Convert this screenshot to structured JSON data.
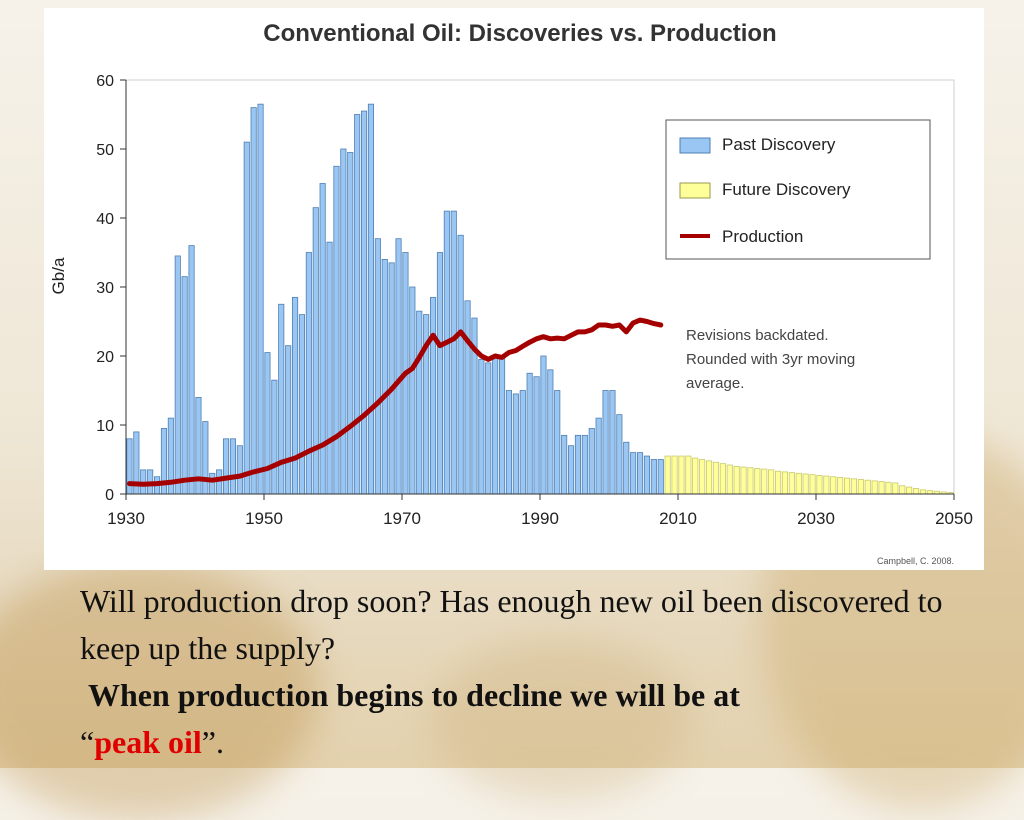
{
  "slide": {
    "question_text": "Will production drop soon? Has enough new oil been discovered to keep up the supply?",
    "statement_prefix": "When production begins to decline we will be at",
    "open_quote": "“",
    "highlight": "peak oil",
    "close_quote": "”."
  },
  "chart_data": {
    "type": "bar",
    "title": "Conventional Oil: Discoveries vs. Production",
    "ylabel": "Gb/a",
    "xlabel": "",
    "xlim": [
      1930,
      2050
    ],
    "ylim": [
      0,
      60
    ],
    "x_ticks": [
      1930,
      1950,
      1970,
      1990,
      2010,
      2030,
      2050
    ],
    "y_ticks": [
      0,
      10,
      20,
      30,
      40,
      50,
      60
    ],
    "legend": {
      "placement": "top-right",
      "entries": [
        "Past Discovery",
        "Future Discovery",
        "Production"
      ]
    },
    "colors": {
      "past_discovery": "#99c6f2",
      "future_discovery": "#ffff99",
      "production": "#a50000",
      "bar_edge": "#4f7fb3",
      "future_edge": "#c9c96a"
    },
    "annotation": [
      "Revisions backdated.",
      "Rounded with 3yr moving",
      "average."
    ],
    "source": "Campbell, C. 2008.",
    "series": [
      {
        "name": "Past Discovery",
        "x": [
          1930,
          1931,
          1932,
          1933,
          1934,
          1935,
          1936,
          1937,
          1938,
          1939,
          1940,
          1941,
          1942,
          1943,
          1944,
          1945,
          1946,
          1947,
          1948,
          1949,
          1950,
          1951,
          1952,
          1953,
          1954,
          1955,
          1956,
          1957,
          1958,
          1959,
          1960,
          1961,
          1962,
          1963,
          1964,
          1965,
          1966,
          1967,
          1968,
          1969,
          1970,
          1971,
          1972,
          1973,
          1974,
          1975,
          1976,
          1977,
          1978,
          1979,
          1980,
          1981,
          1982,
          1983,
          1984,
          1985,
          1986,
          1987,
          1988,
          1989,
          1990,
          1991,
          1992,
          1993,
          1994,
          1995,
          1996,
          1997,
          1998,
          1999,
          2000,
          2001,
          2002,
          2003,
          2004,
          2005,
          2006,
          2007
        ],
        "values": [
          8,
          9,
          3.5,
          3.5,
          2.5,
          9.5,
          11,
          34.5,
          31.5,
          36,
          14,
          10.5,
          3,
          3.5,
          8,
          8,
          7,
          51,
          56,
          56.5,
          20.5,
          16.5,
          27.5,
          21.5,
          28.5,
          26,
          35,
          41.5,
          45,
          36.5,
          47.5,
          50,
          49.5,
          55,
          55.5,
          56.5,
          37,
          34,
          33.5,
          37,
          35,
          30,
          26.5,
          26,
          28.5,
          35,
          41,
          41,
          37.5,
          28,
          25.5,
          19.5,
          19,
          20,
          20,
          15,
          14.5,
          15,
          17.5,
          17,
          20,
          18,
          15,
          8.5,
          7,
          8.5,
          8.5,
          9.5,
          11,
          15,
          15,
          11.5,
          7.5,
          6,
          6,
          5.5,
          5,
          5
        ]
      },
      {
        "name": "Future Discovery",
        "x": [
          2008,
          2009,
          2010,
          2011,
          2012,
          2013,
          2014,
          2015,
          2016,
          2017,
          2018,
          2019,
          2020,
          2021,
          2022,
          2023,
          2024,
          2025,
          2026,
          2027,
          2028,
          2029,
          2030,
          2031,
          2032,
          2033,
          2034,
          2035,
          2036,
          2037,
          2038,
          2039,
          2040,
          2041,
          2042,
          2043,
          2044,
          2045,
          2046,
          2047,
          2048,
          2049
        ],
        "values": [
          5.5,
          5.5,
          5.5,
          5.5,
          5.2,
          5,
          4.8,
          4.6,
          4.4,
          4.2,
          4,
          3.9,
          3.8,
          3.7,
          3.6,
          3.5,
          3.3,
          3.2,
          3.1,
          3,
          2.9,
          2.8,
          2.7,
          2.6,
          2.5,
          2.4,
          2.3,
          2.2,
          2.1,
          2,
          1.9,
          1.8,
          1.7,
          1.6,
          1.2,
          1,
          0.8,
          0.6,
          0.5,
          0.4,
          0.3,
          0.2
        ]
      },
      {
        "name": "Production",
        "x": [
          1930,
          1932,
          1934,
          1936,
          1938,
          1940,
          1942,
          1944,
          1946,
          1948,
          1950,
          1952,
          1954,
          1956,
          1958,
          1960,
          1962,
          1964,
          1966,
          1968,
          1970,
          1971,
          1972,
          1973,
          1974,
          1975,
          1976,
          1977,
          1978,
          1979,
          1980,
          1981,
          1982,
          1983,
          1984,
          1985,
          1986,
          1987,
          1988,
          1989,
          1990,
          1991,
          1992,
          1993,
          1994,
          1995,
          1996,
          1997,
          1998,
          1999,
          2000,
          2001,
          2002,
          2003,
          2004,
          2005,
          2006,
          2007
        ],
        "values": [
          1.5,
          1.4,
          1.5,
          1.7,
          2,
          2.2,
          2,
          2.3,
          2.6,
          3.2,
          3.7,
          4.6,
          5.2,
          6.2,
          7.1,
          8.3,
          9.8,
          11.4,
          13.2,
          15.2,
          17.5,
          18.2,
          19.8,
          21.5,
          23,
          21.5,
          22,
          22.5,
          23.5,
          22.2,
          21,
          20,
          19.5,
          20,
          19.8,
          20.5,
          20.8,
          21.4,
          22,
          22.5,
          22.8,
          22.5,
          22.6,
          22.5,
          23,
          23.5,
          23.5,
          23.8,
          24.5,
          24.5,
          24.3,
          24.5,
          23.5,
          24.8,
          25.2,
          25,
          24.7,
          24.5
        ]
      }
    ]
  }
}
